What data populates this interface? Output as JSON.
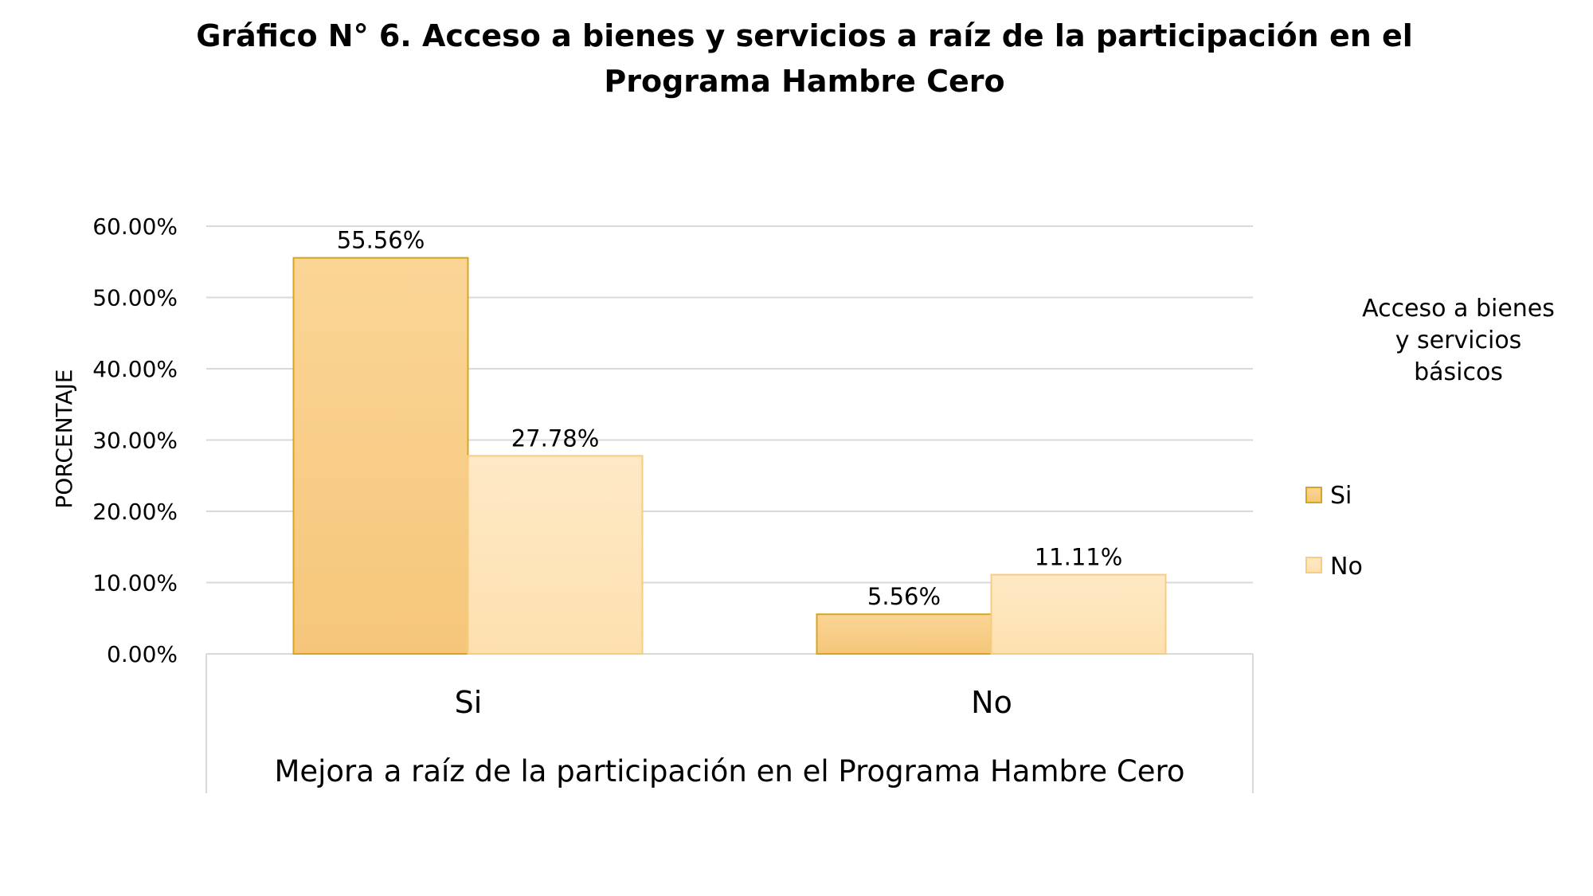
{
  "chart_data": {
    "type": "bar",
    "title": [
      "Gráfico N° 6. Acceso a bienes y servicios a raíz de la participación en el",
      "Programa Hambre Cero"
    ],
    "xlabel": "Mejora a raíz de la participación en el Programa Hambre Cero",
    "ylabel": "PORCENTAJE",
    "categories": [
      "Si",
      "No"
    ],
    "ylim": [
      0,
      60
    ],
    "yticks": [
      "0.00%",
      "10.00%",
      "20.00%",
      "30.00%",
      "40.00%",
      "50.00%",
      "60.00%"
    ],
    "grid": true,
    "legend": {
      "title": [
        "Acceso a bienes",
        "y servicios",
        "básicos"
      ],
      "position": "right"
    },
    "series": [
      {
        "name": "Si",
        "values": [
          55.56,
          5.56
        ],
        "labels": [
          "55.56%",
          "5.56%"
        ],
        "color_top": "#fbd596",
        "color_bottom": "#f5c67a",
        "border": "#d9a520"
      },
      {
        "name": "No",
        "values": [
          27.78,
          11.11
        ],
        "labels": [
          "27.78%",
          "11.11%"
        ],
        "color_top": "#fee9c6",
        "color_bottom": "#fde0ae",
        "border": "#f6cc80"
      }
    ]
  }
}
